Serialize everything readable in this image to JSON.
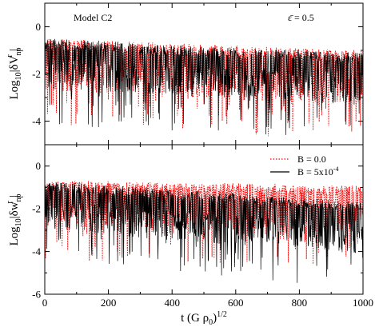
{
  "chart_data": [
    {
      "type": "line",
      "panel": "top",
      "annotation_left": "Model C2",
      "annotation_right": "ε̄ = 0.5",
      "ylabel_main": "Log",
      "ylabel_sub": "10",
      "ylabel_rest": "|δV",
      "ylabel_var_sub": "np",
      "ylabel_var_sup": "r",
      "ylabel_close": "|",
      "xlim": [
        0,
        1000
      ],
      "ylim": [
        -5,
        1
      ],
      "yticks": [
        0,
        -2,
        -4
      ],
      "ytick_labels": [
        "0",
        "-2",
        "-4"
      ],
      "series": [
        {
          "name": "B = 0.0",
          "color": "#ff0000",
          "style": "dotted",
          "x": [
            0,
            200,
            400,
            600,
            800,
            1000
          ],
          "upper": [
            -0.5,
            -0.6,
            -0.7,
            -0.8,
            -0.9,
            -1.0
          ],
          "lower": [
            -2.7,
            -2.9,
            -3.0,
            -3.1,
            -3.2,
            -3.3
          ]
        },
        {
          "name": "B = 5x10-4",
          "color": "#000000",
          "style": "solid",
          "x": [
            0,
            200,
            400,
            600,
            800,
            1000
          ],
          "upper": [
            -0.5,
            -0.6,
            -0.8,
            -0.9,
            -1.0,
            -1.1
          ],
          "lower": [
            -2.6,
            -2.8,
            -2.9,
            -3.0,
            -3.1,
            -3.2
          ]
        }
      ]
    },
    {
      "type": "line",
      "panel": "bottom",
      "ylabel_main": "Log",
      "ylabel_sub": "10",
      "ylabel_rest": "|δw",
      "ylabel_var_sub": "np",
      "ylabel_var_sup": "r",
      "ylabel_close": "|",
      "xlabel_main": "t (G ρ",
      "xlabel_sub": "0",
      "xlabel_close": ")",
      "xlabel_sup": "1/2",
      "xlim": [
        0,
        1000
      ],
      "ylim": [
        -6,
        1
      ],
      "xticks": [
        0,
        200,
        400,
        600,
        800,
        1000
      ],
      "xtick_labels": [
        "0",
        "200",
        "400",
        "600",
        "800",
        "1000"
      ],
      "yticks": [
        0,
        -2,
        -4,
        -6
      ],
      "ytick_labels": [
        "0",
        "-2",
        "-4",
        "-6"
      ],
      "legend": {
        "placement": "top-right"
      },
      "series": [
        {
          "name": "B = 0.0",
          "legend_label": "B = 0.0",
          "color": "#ff0000",
          "style": "dotted",
          "x": [
            0,
            200,
            400,
            600,
            800,
            1000
          ],
          "upper": [
            -0.7,
            -0.7,
            -0.8,
            -0.8,
            -0.9,
            -0.9
          ],
          "lower": [
            -2.8,
            -2.9,
            -2.9,
            -3.0,
            -3.0,
            -3.1
          ]
        },
        {
          "name": "B = 5x10-4",
          "legend_label": "B = 5x10",
          "legend_sup": "-4",
          "color": "#000000",
          "style": "solid",
          "x": [
            0,
            200,
            400,
            600,
            800,
            1000
          ],
          "upper": [
            -0.7,
            -0.9,
            -1.1,
            -1.3,
            -1.5,
            -1.7
          ],
          "lower": [
            -2.9,
            -3.2,
            -3.5,
            -3.7,
            -3.9,
            -4.1
          ]
        }
      ]
    }
  ]
}
